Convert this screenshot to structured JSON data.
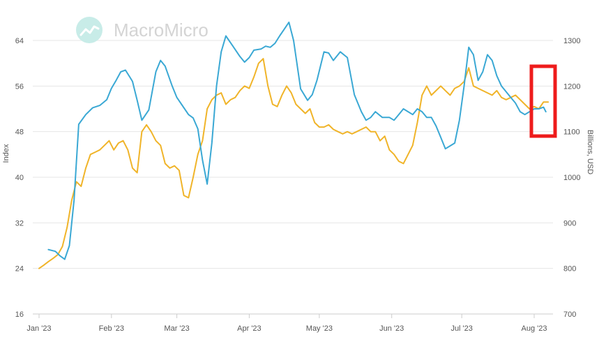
{
  "watermark": {
    "text": "MacroMicro"
  },
  "chart_data": {
    "type": "line",
    "ylabel_left": "Index",
    "ylabel_right": "Billions, USD",
    "x_ticks": [
      {
        "label": "Jan '23",
        "day": 1
      },
      {
        "label": "Feb '23",
        "day": 32
      },
      {
        "label": "Mar '23",
        "day": 60
      },
      {
        "label": "Apr '23",
        "day": 91
      },
      {
        "label": "May '23",
        "day": 121
      },
      {
        "label": "Jun '23",
        "day": 152
      },
      {
        "label": "Jul '23",
        "day": 182
      },
      {
        "label": "Aug '23",
        "day": 213
      }
    ],
    "x_range": [
      "2023-01-01",
      "2023-08-08"
    ],
    "y_left": {
      "ticks": [
        16,
        24,
        32,
        40,
        48,
        56,
        64
      ],
      "range": [
        16,
        64
      ]
    },
    "y_right": {
      "ticks": [
        700,
        800,
        900,
        1000,
        1100,
        1200,
        1300
      ],
      "range": [
        700,
        1300
      ]
    },
    "grid": true,
    "legend": "none",
    "series": [
      {
        "axis": "left",
        "color": "#3aa8d4",
        "x": [
          5,
          8,
          10,
          12,
          14,
          16,
          18,
          21,
          24,
          27,
          30,
          32,
          34,
          36,
          38,
          40,
          41,
          43,
          45,
          48,
          51,
          53,
          55,
          58,
          60,
          62,
          65,
          67,
          69,
          71,
          73,
          75,
          77,
          79,
          81,
          84,
          87,
          89,
          91,
          93,
          96,
          98,
          100,
          102,
          104,
          106,
          108,
          110,
          113,
          116,
          118,
          120,
          123,
          125,
          127,
          130,
          133,
          136,
          139,
          141,
          143,
          145,
          148,
          151,
          153,
          155,
          157,
          159,
          161,
          163,
          165,
          167,
          169,
          171,
          173,
          175,
          177,
          179,
          181,
          183,
          185,
          187,
          189,
          191,
          193,
          195,
          197,
          199,
          201,
          203,
          205,
          207,
          209,
          211,
          213,
          215,
          217,
          218
        ],
        "values": [
          27.3,
          27.0,
          26.2,
          25.6,
          28.0,
          36.0,
          49.3,
          51.0,
          52.2,
          52.6,
          53.6,
          55.6,
          57.0,
          58.5,
          58.8,
          57.5,
          56.8,
          53.5,
          50.0,
          51.8,
          58.5,
          60.5,
          59.5,
          56.0,
          54.0,
          52.8,
          51.0,
          50.4,
          48.5,
          43.0,
          38.8,
          46.0,
          56.0,
          62.0,
          64.8,
          63.0,
          61.2,
          60.2,
          61.0,
          62.3,
          62.5,
          63.0,
          62.8,
          63.5,
          64.8,
          66.0,
          67.2,
          64.0,
          55.5,
          53.5,
          54.5,
          57.0,
          62.0,
          61.8,
          60.5,
          62.0,
          61.0,
          54.5,
          51.5,
          50.0,
          50.5,
          51.5,
          50.5,
          50.5,
          50.0,
          51.0,
          52.0,
          51.5,
          51.0,
          52.0,
          51.5,
          50.5,
          50.5,
          49.0,
          47.0,
          45.0,
          45.5,
          46.0,
          50.0,
          56.0,
          62.8,
          61.5,
          57.0,
          58.5,
          61.5,
          60.5,
          57.8,
          56.0,
          55.0,
          54.0,
          53.0,
          51.5,
          51.0,
          51.5,
          52.0,
          52.0,
          52.3,
          51.5
        ]
      },
      {
        "axis": "right",
        "color": "#f0b429",
        "x": [
          1,
          3,
          5,
          7,
          9,
          11,
          13,
          15,
          17,
          19,
          21,
          23,
          25,
          27,
          29,
          31,
          33,
          35,
          37,
          39,
          41,
          43,
          45,
          47,
          49,
          51,
          53,
          55,
          57,
          59,
          61,
          63,
          65,
          67,
          69,
          71,
          73,
          75,
          77,
          79,
          81,
          83,
          85,
          87,
          89,
          91,
          93,
          95,
          97,
          99,
          101,
          103,
          105,
          107,
          109,
          111,
          113,
          115,
          117,
          119,
          121,
          123,
          125,
          127,
          129,
          131,
          133,
          135,
          137,
          139,
          141,
          143,
          145,
          147,
          149,
          151,
          153,
          155,
          157,
          159,
          161,
          163,
          165,
          167,
          169,
          171,
          173,
          175,
          177,
          179,
          181,
          183,
          185,
          187,
          189,
          191,
          193,
          195,
          197,
          199,
          201,
          203,
          205,
          207,
          209,
          211,
          213,
          215,
          217,
          219
        ],
        "values": [
          800,
          807,
          815,
          822,
          830,
          848,
          890,
          950,
          990,
          980,
          1020,
          1050,
          1055,
          1060,
          1070,
          1080,
          1060,
          1075,
          1080,
          1060,
          1020,
          1010,
          1100,
          1115,
          1100,
          1080,
          1070,
          1030,
          1020,
          1025,
          1015,
          960,
          955,
          1000,
          1050,
          1080,
          1150,
          1170,
          1180,
          1185,
          1160,
          1170,
          1175,
          1190,
          1200,
          1195,
          1220,
          1250,
          1260,
          1200,
          1160,
          1155,
          1180,
          1200,
          1185,
          1160,
          1150,
          1140,
          1150,
          1120,
          1110,
          1110,
          1115,
          1105,
          1100,
          1095,
          1100,
          1095,
          1100,
          1105,
          1110,
          1100,
          1100,
          1080,
          1090,
          1060,
          1050,
          1035,
          1030,
          1050,
          1070,
          1120,
          1180,
          1200,
          1180,
          1190,
          1200,
          1190,
          1180,
          1195,
          1200,
          1210,
          1240,
          1200,
          1195,
          1190,
          1185,
          1180,
          1190,
          1175,
          1170,
          1175,
          1180,
          1170,
          1160,
          1150,
          1155,
          1150,
          1165,
          1165
        ]
      }
    ]
  }
}
